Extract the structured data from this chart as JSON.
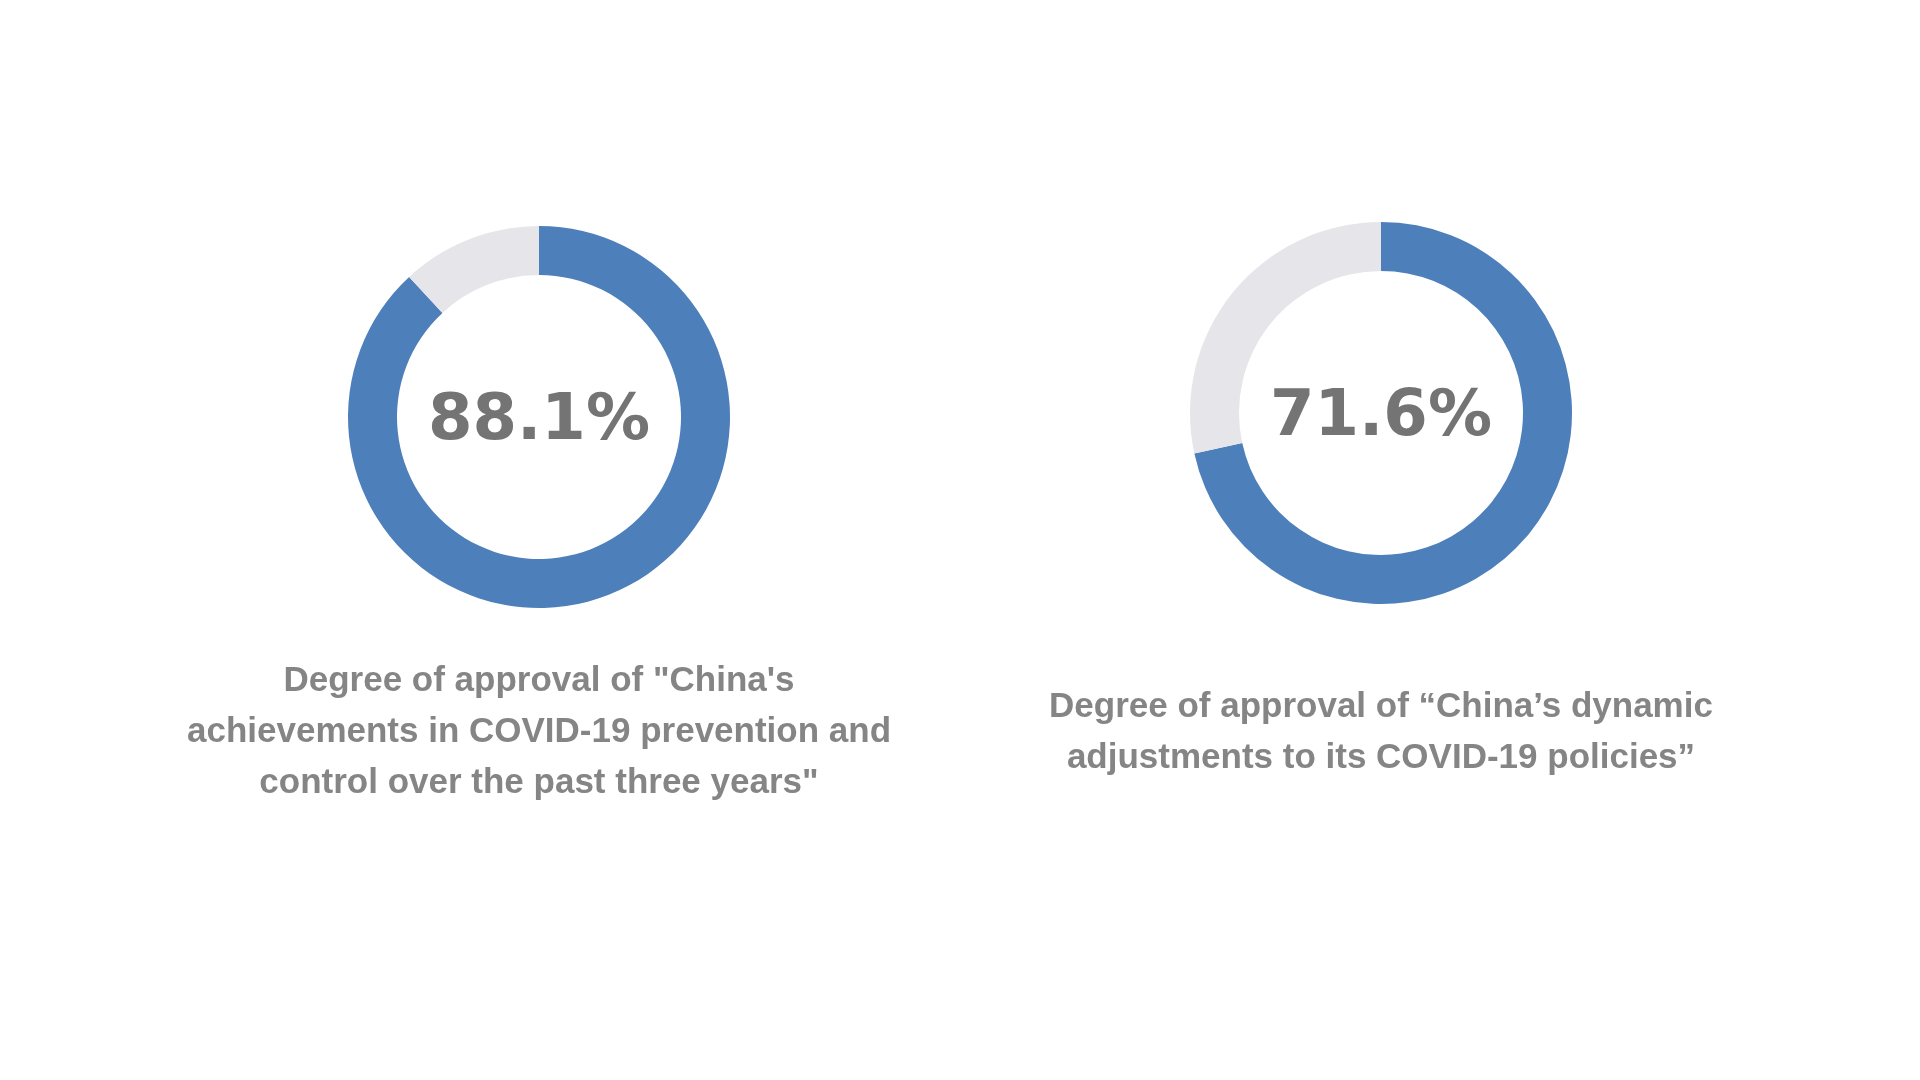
{
  "chart_data": [
    {
      "type": "donut",
      "title": "Degree of approval of \"China's achievements in COVID-19 prevention and control over the past three years\"",
      "categories": [
        null,
        null
      ],
      "values": [
        88.1,
        11.9
      ],
      "colors": [
        "#4d7fba",
        "#e6e6ea"
      ],
      "value_labels": [
        "88.1%",
        null
      ]
    },
    {
      "type": "donut",
      "title": "Degree of approval of “China’s dynamic adjustments to its COVID-19 policies”",
      "categories": [
        null,
        null
      ],
      "values": [
        71.6,
        28.4
      ],
      "colors": [
        "#4d7fba",
        "#e6e6ea"
      ],
      "value_labels": [
        "71.6%",
        null
      ]
    }
  ]
}
